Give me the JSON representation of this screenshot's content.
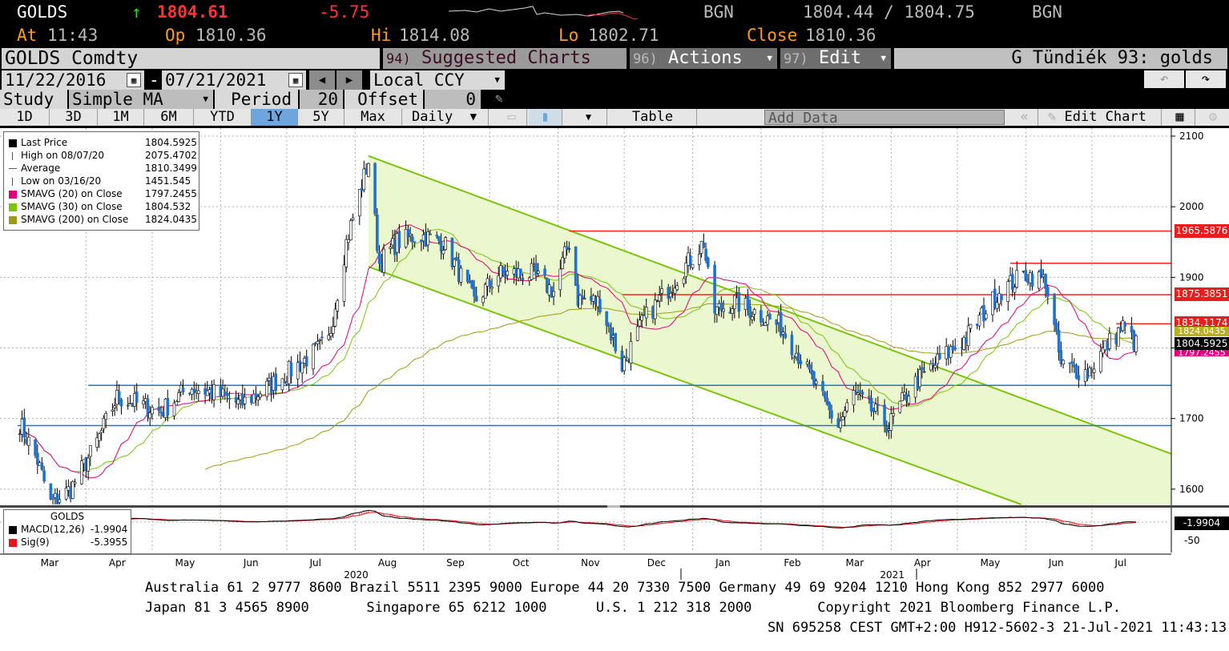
{
  "quote": {
    "ticker": "GOLDS",
    "arrow": "↑",
    "last": "1804.61",
    "change": "-5.75",
    "src1": "BGN",
    "bid_ask": "1804.44 / 1804.75",
    "src2": "BGN",
    "at_label": "At",
    "at_time": "11:43",
    "op_label": "Op",
    "op_val": "1810.36",
    "hi_label": "Hi",
    "hi_val": "1814.08",
    "lo_label": "Lo",
    "lo_val": "1802.71",
    "close_label": "Close",
    "close_val": "1810.36"
  },
  "menu": {
    "security": "GOLDS Comdty",
    "suggested_num": "94)",
    "suggested": "Suggested Charts",
    "actions_num": "96)",
    "actions": "Actions",
    "edit_num": "97)",
    "edit": "Edit",
    "title": "G Tündiék 93: golds"
  },
  "range": {
    "start": "11/22/2016",
    "dash": "-",
    "end": "07/21/2021",
    "currency": "Local CCY"
  },
  "study": {
    "label": "Study",
    "value": "Simple MA",
    "period_label": "Period",
    "period_value": "20",
    "offset_label": "Offset",
    "offset_value": "0"
  },
  "toolbar": {
    "periods": [
      "1D",
      "3D",
      "1M",
      "6M",
      "YTD",
      "1Y",
      "5Y",
      "Max"
    ],
    "selected": "1Y",
    "frequency": "Daily",
    "table": "Table",
    "add_data": "Add Data",
    "edit_chart": "Edit Chart"
  },
  "legend": [
    {
      "label": "Last Price",
      "value": "1804.5925",
      "color": "#000000",
      "kind": "box"
    },
    {
      "label": "High on 08/07/20",
      "value": "2075.4702",
      "color": "#555555",
      "kind": "high"
    },
    {
      "label": "Average",
      "value": "1810.3499",
      "color": "#555555",
      "kind": "avg"
    },
    {
      "label": "Low on 03/16/20",
      "value": "1451.545",
      "color": "#555555",
      "kind": "low"
    },
    {
      "label": "SMAVG (20)  on Close",
      "value": "1797.2455",
      "color": "#e0007a",
      "kind": "box"
    },
    {
      "label": "SMAVG (30)  on Close",
      "value": "1804.532",
      "color": "#7ac50a",
      "kind": "box"
    },
    {
      "label": "SMAVG (200)  on Close",
      "value": "1824.0435",
      "color": "#a09a10",
      "kind": "box"
    }
  ],
  "macd": {
    "title": "GOLDS",
    "line_label": "MACD(12,26)",
    "line_value": "-1.9904",
    "sig_label": "Sig(9)",
    "sig_value": "-5.3955",
    "right_value": "-1.9904",
    "right_tick": "-50",
    "line_color": "#000000",
    "sig_color": "#e8141e"
  },
  "price_labels": {
    "r1965": "1965.5876",
    "r1875": "1875.3851",
    "r1834": "1834.1174",
    "hidden_200": "1824.0435",
    "last": "1804.5925",
    "hidden_20": "1797.2455"
  },
  "footer": {
    "line1": "Australia 61 2 9777 8600 Brazil 5511 2395 9000 Europe 44 20 7330 7500 Germany 49 69 9204 1210 Hong Kong 852 2977 6000",
    "line2": "Japan 81 3 4565 8900       Singapore 65 6212 1000      U.S. 1 212 318 2000        Copyright 2021 Bloomberg Finance L.P.",
    "line3": "SN 695258 CEST GMT+2:00 H912-5602-3 21-Jul-2021 11:43:13"
  },
  "chart_data": {
    "type": "line",
    "subtype": "candlestick",
    "security": "GOLDS Comdty",
    "frequency": "Daily",
    "y_ticks": [
      2100,
      2000,
      1900,
      1800,
      1700,
      1600
    ],
    "ylim": [
      1560,
      2110
    ],
    "x_ticks": [
      "Mar",
      "Apr",
      "May",
      "Jun",
      "Jul",
      "Aug",
      "Sep",
      "Oct",
      "Nov",
      "Dec",
      "Jan",
      "Feb",
      "Mar",
      "Apr",
      "May",
      "Jun",
      "Jul"
    ],
    "year_labels": [
      {
        "label": "2020",
        "at_month": "Aug"
      },
      {
        "label": "2021",
        "at_month": "Apr"
      }
    ],
    "price_path": [
      [
        "2020-03-01",
        1700
      ],
      [
        "2020-03-10",
        1640
      ],
      [
        "2020-03-16",
        1580
      ],
      [
        "2020-03-25",
        1600
      ],
      [
        "2020-04-05",
        1660
      ],
      [
        "2020-04-15",
        1730
      ],
      [
        "2020-04-25",
        1720
      ],
      [
        "2020-05-05",
        1710
      ],
      [
        "2020-05-18",
        1745
      ],
      [
        "2020-05-30",
        1735
      ],
      [
        "2020-06-10",
        1720
      ],
      [
        "2020-06-25",
        1750
      ],
      [
        "2020-07-08",
        1780
      ],
      [
        "2020-07-20",
        1810
      ],
      [
        "2020-07-28",
        1950
      ],
      [
        "2020-08-07",
        2065
      ],
      [
        "2020-08-12",
        1920
      ],
      [
        "2020-08-20",
        1950
      ],
      [
        "2020-08-30",
        1960
      ],
      [
        "2020-09-10",
        1950
      ],
      [
        "2020-09-24",
        1865
      ],
      [
        "2020-10-05",
        1905
      ],
      [
        "2020-10-20",
        1905
      ],
      [
        "2020-10-30",
        1880
      ],
      [
        "2020-11-06",
        1950
      ],
      [
        "2020-11-10",
        1870
      ],
      [
        "2020-11-20",
        1865
      ],
      [
        "2020-11-30",
        1775
      ],
      [
        "2020-12-10",
        1840
      ],
      [
        "2020-12-20",
        1880
      ],
      [
        "2021-01-06",
        1950
      ],
      [
        "2021-01-10",
        1850
      ],
      [
        "2021-01-20",
        1865
      ],
      [
        "2021-01-30",
        1850
      ],
      [
        "2021-02-10",
        1830
      ],
      [
        "2021-02-20",
        1780
      ],
      [
        "2021-02-28",
        1730
      ],
      [
        "2021-03-08",
        1690
      ],
      [
        "2021-03-15",
        1735
      ],
      [
        "2021-03-31",
        1690
      ],
      [
        "2021-04-10",
        1745
      ],
      [
        "2021-04-22",
        1780
      ],
      [
        "2021-05-05",
        1815
      ],
      [
        "2021-05-20",
        1880
      ],
      [
        "2021-06-01",
        1905
      ],
      [
        "2021-06-10",
        1895
      ],
      [
        "2021-06-17",
        1775
      ],
      [
        "2021-06-29",
        1765
      ],
      [
        "2021-07-08",
        1805
      ],
      [
        "2021-07-15",
        1830
      ],
      [
        "2021-07-21",
        1804.6
      ]
    ],
    "horizontal_lines": [
      {
        "value": 1965.5876,
        "color": "#ff2020",
        "from": "2020-11-06"
      },
      {
        "value": 1920,
        "color": "#ff2020",
        "from": "2021-05-25"
      },
      {
        "value": 1875.3851,
        "color": "#ff2020",
        "from": "2020-11-30"
      },
      {
        "value": 1834.1174,
        "color": "#ff2020",
        "from": "2021-07-12"
      },
      {
        "value": 1747,
        "color": "#1e78c8",
        "from": "2020-04-02"
      },
      {
        "value": 1690,
        "color": "#1e78c8",
        "from": "2020-03-01"
      }
    ],
    "channel": {
      "upper": [
        [
          "2020-08-07",
          2072
        ],
        [
          "2021-07-31",
          1650
        ]
      ],
      "lower": [
        [
          "2020-08-07",
          1915
        ],
        [
          "2021-05-30",
          1570
        ]
      ],
      "fill": "#eaf7cf",
      "stroke": "#7ac50a"
    },
    "series": [
      {
        "name": "SMAVG (20)  on Close",
        "last": 1797.2455,
        "color": "#e0007a"
      },
      {
        "name": "SMAVG (30)  on Close",
        "last": 1804.532,
        "color": "#7ac50a"
      },
      {
        "name": "SMAVG (200)  on Close",
        "last": 1824.0435,
        "color": "#a09a10"
      }
    ]
  }
}
